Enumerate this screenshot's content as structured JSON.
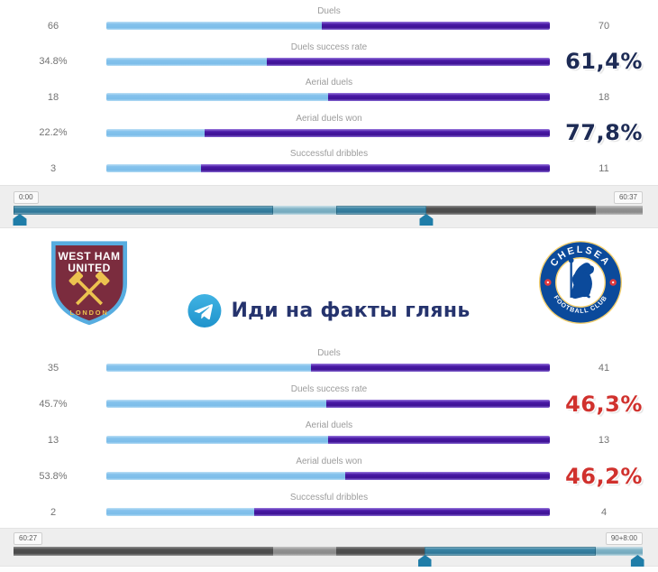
{
  "colors": {
    "home_bar": "#85c3ed",
    "away_bar": "#45179f",
    "emphasis_navy": "#1d2b55",
    "emphasis_red": "#d0312d",
    "timeline_teal": "#2f7697",
    "timeline_gray": "#4f4f4f",
    "telegram_blue": "#32a3dc",
    "watermark_text_color": "#25336d"
  },
  "chart_data": [
    {
      "type": "bar",
      "subtype": "paired-horizontal-comparison",
      "period": {
        "start": "0:00",
        "end": "60:37"
      },
      "categories": [
        "Duels",
        "Duels success rate",
        "Aerial duels",
        "Aerial duels won",
        "Successful dribbles"
      ],
      "series": [
        {
          "name": "West Ham United",
          "side": "left",
          "color": "#85c3ed",
          "values": [
            66,
            34.8,
            18,
            22.2,
            3
          ],
          "labels": [
            "66",
            "34.8%",
            "18",
            "22.2%",
            "3"
          ]
        },
        {
          "name": "Chelsea",
          "side": "right",
          "color": "#45179f",
          "values": [
            70,
            61.4,
            18,
            77.8,
            11
          ],
          "labels": [
            "70",
            "61,4%",
            "18",
            "77,8%",
            "11"
          ]
        }
      ],
      "emphasized_rows": [
        1,
        3
      ],
      "highlight_color": "#1d2b55",
      "bar_rule": "left width = left/(left+right)"
    },
    {
      "type": "bar",
      "subtype": "paired-horizontal-comparison",
      "period": {
        "start": "60:27",
        "end": "90+8:00"
      },
      "categories": [
        "Duels",
        "Duels success rate",
        "Aerial duels",
        "Aerial duels won",
        "Successful dribbles"
      ],
      "series": [
        {
          "name": "West Ham United",
          "side": "left",
          "color": "#85c3ed",
          "values": [
            35,
            45.7,
            13,
            53.8,
            2
          ],
          "labels": [
            "35",
            "45.7%",
            "13",
            "53.8%",
            "2"
          ]
        },
        {
          "name": "Chelsea",
          "side": "right",
          "color": "#45179f",
          "values": [
            41,
            46.3,
            13,
            46.2,
            4
          ],
          "labels": [
            "41",
            "46,3%",
            "13",
            "46,2%",
            "4"
          ]
        }
      ],
      "emphasized_rows": [
        1,
        3
      ],
      "highlight_color": "#d0312d",
      "bar_rule": "left width = left/(left+right)"
    }
  ],
  "timelines": [
    {
      "start_label": "0:00",
      "end_label": "60:37",
      "segments": [
        {
          "from": 0,
          "to": 41.3,
          "style": "teal"
        },
        {
          "from": 41.3,
          "to": 51.3,
          "style": "teal_light"
        },
        {
          "from": 51.3,
          "to": 65.6,
          "style": "teal"
        },
        {
          "from": 65.6,
          "to": 92.5,
          "style": "gray"
        },
        {
          "from": 92.5,
          "to": 100,
          "style": "gray_light"
        }
      ],
      "markers": [
        1,
        65.6
      ]
    },
    {
      "start_label": "60:27",
      "end_label": "90+8:00",
      "segments": [
        {
          "from": 0,
          "to": 41.3,
          "style": "gray"
        },
        {
          "from": 41.3,
          "to": 51.3,
          "style": "gray_light"
        },
        {
          "from": 51.3,
          "to": 65.4,
          "style": "gray"
        },
        {
          "from": 65.4,
          "to": 92.5,
          "style": "teal"
        },
        {
          "from": 92.5,
          "to": 100,
          "style": "teal_light"
        }
      ],
      "markers": [
        65.4,
        99.2
      ]
    }
  ],
  "teams": {
    "home": {
      "shield_line1": "WEST HAM",
      "shield_line2": "UNITED",
      "shield_bottom": "LONDON"
    },
    "away": {
      "ring_top": "CHELSEA",
      "ring_bottom": "FOOTBALL CLUB"
    }
  },
  "watermark": {
    "text": "Иди на факты глянь"
  }
}
